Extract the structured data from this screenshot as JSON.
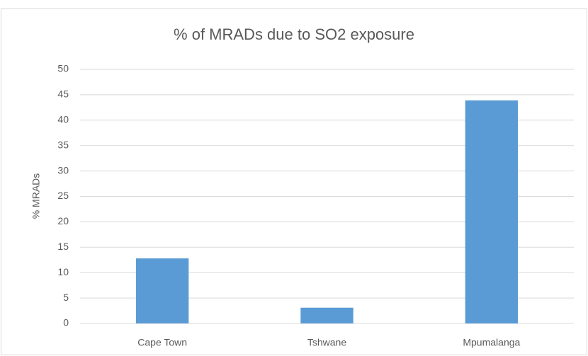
{
  "chart_data": {
    "type": "bar",
    "title": "% of MRADs due to SO2 exposure",
    "ylabel": "% MRADs",
    "categories": [
      "Cape Town",
      "Tshwane",
      "Mpumalanga"
    ],
    "values": [
      12.8,
      3.1,
      43.9
    ],
    "color": "#5b9bd5",
    "ylim": [
      0,
      50
    ],
    "yticks": [
      0,
      5,
      10,
      15,
      20,
      25,
      30,
      35,
      40,
      45,
      50
    ],
    "grid": true
  }
}
